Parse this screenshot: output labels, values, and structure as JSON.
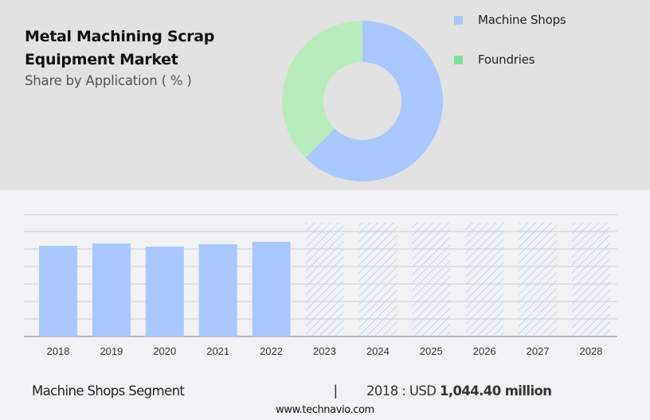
{
  "header": {
    "title_line1": "Metal Machining Scrap",
    "title_line2": "Equipment Market",
    "subtitle": "Share by Application ( % )"
  },
  "legend": [
    {
      "label": "Machine Shops",
      "color": "#a8c8ff"
    },
    {
      "label": "Foundries",
      "color": "#7ee29a"
    }
  ],
  "footer": {
    "segment_label": "Machine Shops Segment",
    "separator": "|",
    "value_prefix": "2018 : USD ",
    "value_bold": "1,044.40 million",
    "url": "www.technavio.com"
  },
  "chart_data": [
    {
      "type": "pie",
      "title": "Share by Application ( % )",
      "donut": true,
      "categories": [
        "Machine Shops",
        "Foundries"
      ],
      "values": [
        62.5,
        37.5
      ],
      "colors": [
        "#a8c8ff",
        "#b8ecbc"
      ],
      "legend_position": "right"
    },
    {
      "type": "bar",
      "title": "Machine Shops Segment",
      "categories": [
        "2018",
        "2019",
        "2020",
        "2021",
        "2022",
        "2023",
        "2024",
        "2025",
        "2026",
        "2027",
        "2028"
      ],
      "values": [
        1044.4,
        1071,
        1035,
        1063,
        1090,
        null,
        null,
        null,
        null,
        null,
        null
      ],
      "forecast_years": [
        "2023",
        "2024",
        "2025",
        "2026",
        "2027",
        "2028"
      ],
      "forecast_style": "hatched",
      "xlabel": "",
      "ylabel": "",
      "y_tick_labels_visible": false,
      "grid": true,
      "bar_color": "#a8c8ff",
      "unit": "USD million"
    }
  ]
}
